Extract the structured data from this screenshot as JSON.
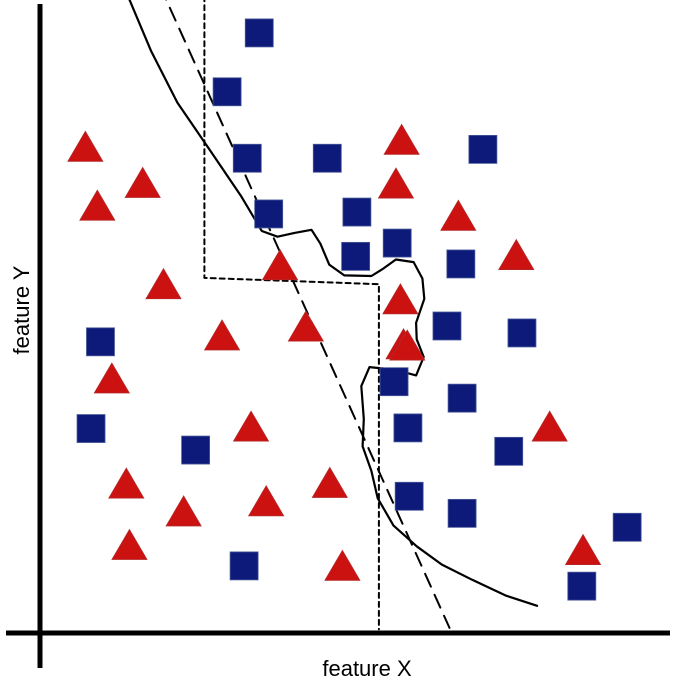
{
  "chart_data": {
    "type": "scatter",
    "xlabel": "feature X",
    "ylabel": "feature Y",
    "xlim": [
      0,
      100
    ],
    "ylim": [
      0,
      100
    ],
    "grid": false,
    "legend": "none",
    "colors": {
      "triangle": "#cc1111",
      "square": "#0d1a7a",
      "axis": "#000000"
    },
    "series": [
      {
        "marker": "triangle",
        "color": "#cc1111",
        "points": [
          [
            7.2,
            76.5
          ],
          [
            16.3,
            70.8
          ],
          [
            9.1,
            67.2
          ],
          [
            19.6,
            54.8
          ],
          [
            28.9,
            46.7
          ],
          [
            11.4,
            39.9
          ],
          [
            33.5,
            32.3
          ],
          [
            13.7,
            23.3
          ],
          [
            22.8,
            18.9
          ],
          [
            14.2,
            13.6
          ],
          [
            35.9,
            20.5
          ],
          [
            42.2,
            48.1
          ],
          [
            38.1,
            57.8
          ],
          [
            57.2,
            52.4
          ],
          [
            46.0,
            23.4
          ],
          [
            48.0,
            10.3
          ],
          [
            57.4,
            77.6
          ],
          [
            56.5,
            70.7
          ],
          [
            66.4,
            65.6
          ],
          [
            75.6,
            59.4
          ],
          [
            80.9,
            32.3
          ],
          [
            57.7,
            45.3
          ],
          [
            86.2,
            12.8
          ],
          [
            58.3,
            45.1
          ]
        ]
      },
      {
        "marker": "square",
        "color": "#0d1a7a",
        "points": [
          [
            34.8,
            94.8
          ],
          [
            29.7,
            85.5
          ],
          [
            32.9,
            75.0
          ],
          [
            45.6,
            75.0
          ],
          [
            70.3,
            76.4
          ],
          [
            36.3,
            66.2
          ],
          [
            50.3,
            66.5
          ],
          [
            50.1,
            59.5
          ],
          [
            56.7,
            61.6
          ],
          [
            66.8,
            58.3
          ],
          [
            64.6,
            48.5
          ],
          [
            76.5,
            47.4
          ],
          [
            9.6,
            46.0
          ],
          [
            8.1,
            32.3
          ],
          [
            24.7,
            28.9
          ],
          [
            56.2,
            39.7
          ],
          [
            67.0,
            37.1
          ],
          [
            58.4,
            32.4
          ],
          [
            74.4,
            28.7
          ],
          [
            58.6,
            21.6
          ],
          [
            67.0,
            18.9
          ],
          [
            32.4,
            10.6
          ],
          [
            93.2,
            16.7
          ],
          [
            86.0,
            7.4
          ]
        ]
      }
    ],
    "boundaries": [
      {
        "style": "solid",
        "points": [
          [
            14.1,
            100.3
          ],
          [
            17.6,
            92.0
          ],
          [
            21.8,
            83.8
          ],
          [
            27.5,
            75.5
          ],
          [
            32.0,
            68.9
          ],
          [
            35.2,
            63.5
          ],
          [
            37.7,
            62.6
          ],
          [
            40.4,
            63.2
          ],
          [
            43.1,
            63.7
          ],
          [
            44.5,
            61.5
          ],
          [
            45.9,
            58.2
          ],
          [
            48.3,
            56.5
          ],
          [
            52.6,
            56.4
          ],
          [
            54.4,
            57.5
          ],
          [
            56.5,
            59.0
          ],
          [
            59.3,
            58.6
          ],
          [
            60.7,
            56.0
          ],
          [
            61.0,
            52.8
          ],
          [
            59.7,
            49.0
          ],
          [
            59.8,
            46.4
          ],
          [
            60.9,
            43.6
          ],
          [
            59.7,
            40.7
          ],
          [
            56.3,
            41.6
          ],
          [
            52.3,
            42.0
          ],
          [
            51.0,
            39.0
          ],
          [
            51.4,
            33.8
          ],
          [
            51.2,
            29.5
          ],
          [
            52.6,
            25.6
          ],
          [
            53.6,
            21.3
          ],
          [
            56.1,
            17.0
          ],
          [
            59.8,
            13.7
          ],
          [
            63.8,
            10.8
          ],
          [
            68.6,
            8.4
          ],
          [
            74.0,
            5.9
          ],
          [
            78.9,
            4.3
          ]
        ]
      },
      {
        "style": "dashed",
        "points": [
          [
            17.6,
            105.4
          ],
          [
            65.0,
            0.8
          ]
        ]
      },
      {
        "style": "dotted",
        "points": [
          [
            26.1,
            100.6
          ],
          [
            26.1,
            56.1
          ],
          [
            53.8,
            55.1
          ],
          [
            53.8,
            0.6
          ]
        ]
      }
    ]
  }
}
